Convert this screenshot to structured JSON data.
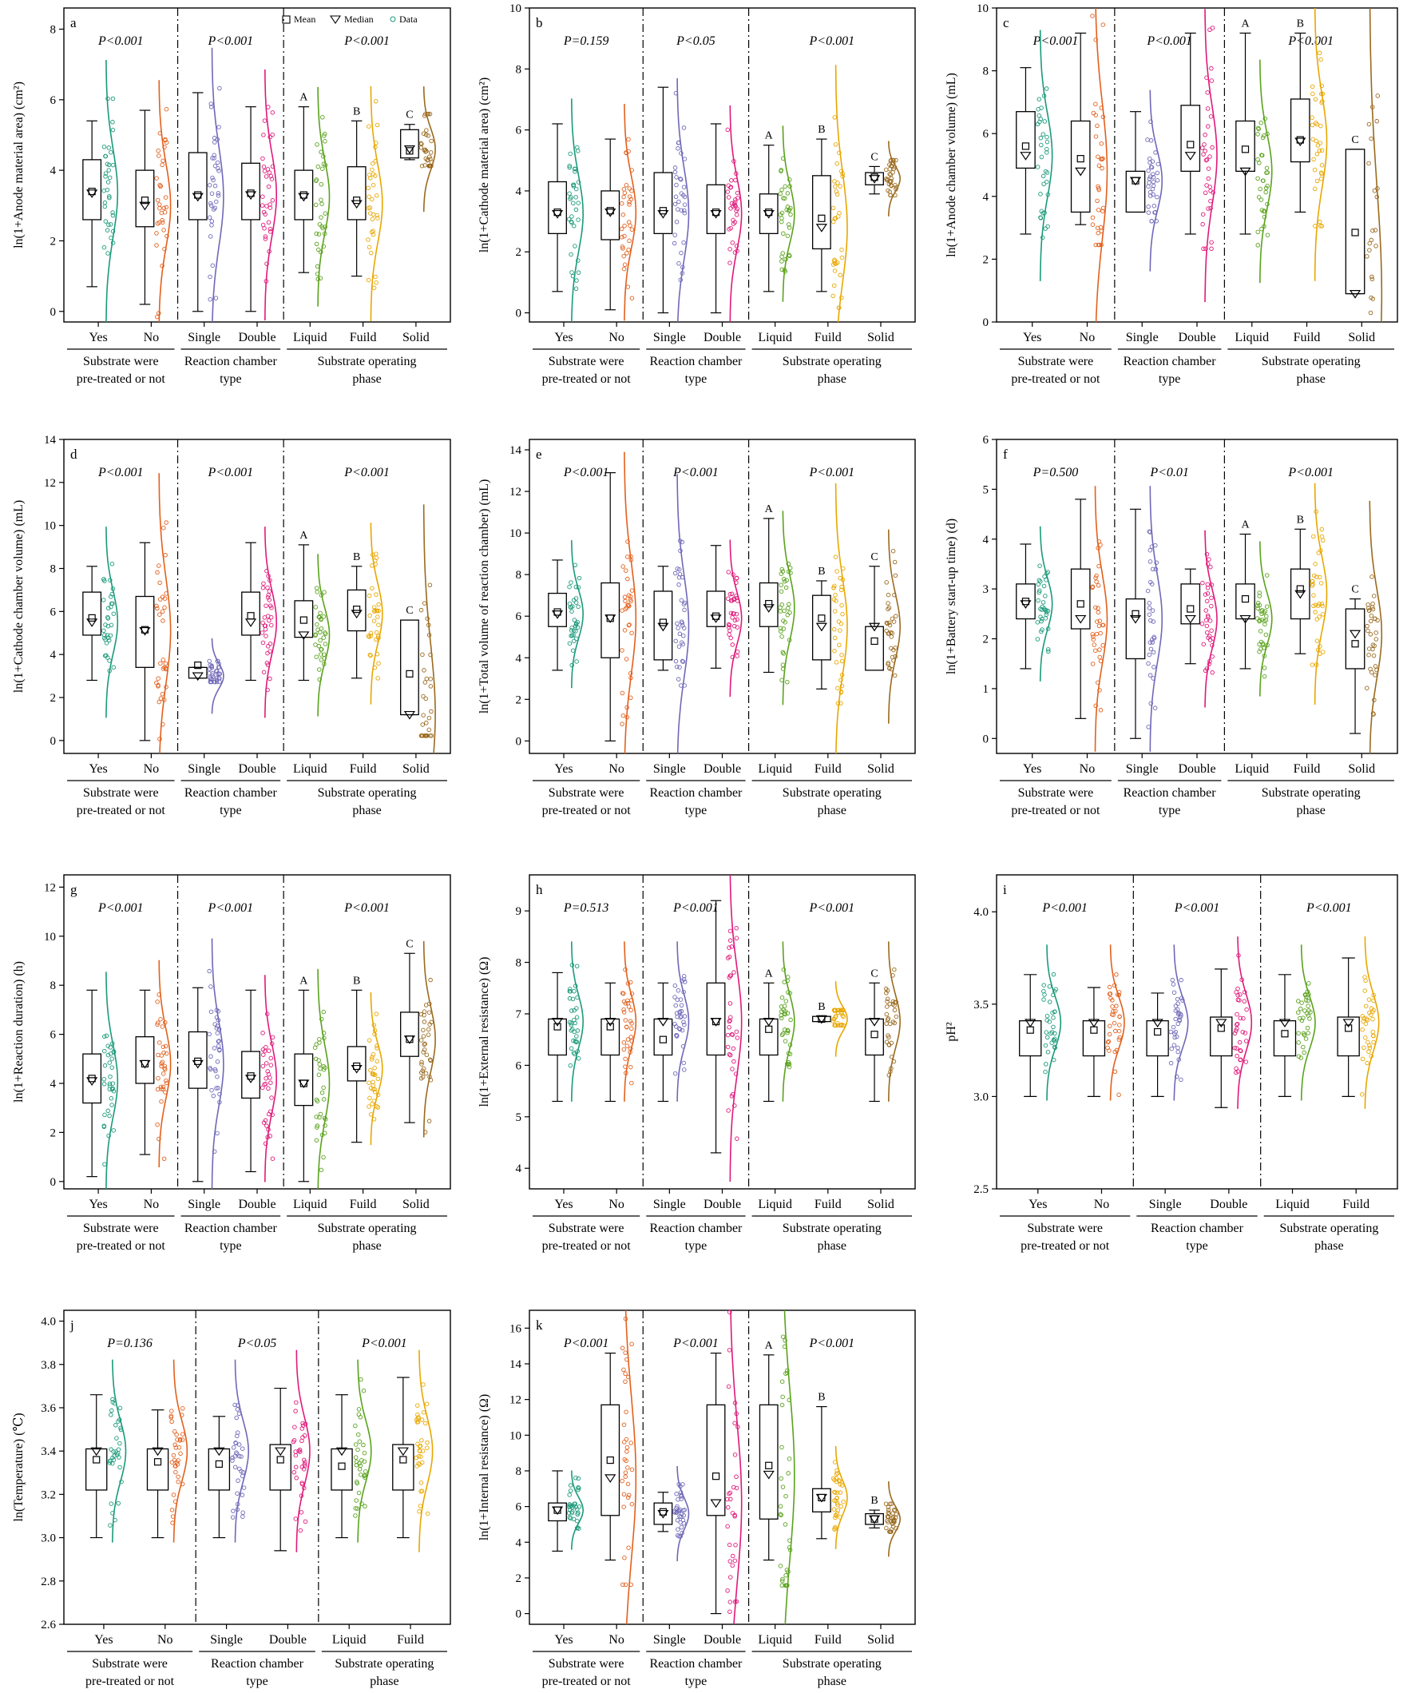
{
  "legend": {
    "mean_label": "Mean",
    "median_label": "Median",
    "data_label": "Data"
  },
  "colors": {
    "Yes": "#1a9a7a",
    "No": "#e2601c",
    "Single": "#6f68b8",
    "Double": "#e0197b",
    "Liquid": "#5aa21c",
    "Fuild": "#e8a700",
    "Solid": "#9a6a1e"
  },
  "group_titles": [
    [
      "Substrate were",
      "pre-treated or not"
    ],
    [
      "Reaction chamber",
      "type"
    ],
    [
      "Substrate operating",
      "phase"
    ]
  ],
  "chart_data": [
    {
      "id": "a",
      "type": "box",
      "ylabel": "ln(1+Anode material area) (cm²)",
      "ylim": [
        -0.3,
        8.6
      ],
      "yticks": [
        0,
        2,
        4,
        6,
        8
      ],
      "pvalues": [
        "P<0.001",
        "P<0.001",
        "P<0.001"
      ],
      "categories": [
        "Yes",
        "No",
        "Single",
        "Double",
        "Liquid",
        "Fuild",
        "Solid"
      ],
      "letters": [
        "",
        "",
        "",
        "",
        "A",
        "B",
        "C"
      ],
      "boxes": [
        {
          "q1": 2.6,
          "q3": 4.3,
          "median": 3.35,
          "mean": 3.4,
          "wlo": 0.7,
          "whi": 5.4
        },
        {
          "q1": 2.4,
          "q3": 4.0,
          "median": 3.0,
          "mean": 3.15,
          "wlo": 0.2,
          "whi": 5.7
        },
        {
          "q1": 2.6,
          "q3": 4.5,
          "median": 3.25,
          "mean": 3.3,
          "wlo": 0.0,
          "whi": 6.2
        },
        {
          "q1": 2.6,
          "q3": 4.2,
          "median": 3.3,
          "mean": 3.35,
          "wlo": 0.0,
          "whi": 5.8
        },
        {
          "q1": 2.6,
          "q3": 4.0,
          "median": 3.25,
          "mean": 3.3,
          "wlo": 1.1,
          "whi": 5.8
        },
        {
          "q1": 2.6,
          "q3": 4.1,
          "median": 3.05,
          "mean": 3.15,
          "wlo": 1.0,
          "whi": 5.4
        },
        {
          "q1": 4.35,
          "q3": 5.15,
          "median": 4.6,
          "mean": 4.55,
          "wlo": 4.3,
          "whi": 5.3
        }
      ]
    },
    {
      "id": "b",
      "type": "box",
      "ylabel": "ln(1+Cathode material area) (cm²)",
      "ylim": [
        -0.3,
        10
      ],
      "yticks": [
        0,
        2,
        4,
        6,
        8,
        10
      ],
      "pvalues": [
        "P=0.159",
        "P<0.05",
        "P<0.001"
      ],
      "categories": [
        "Yes",
        "No",
        "Single",
        "Double",
        "Liquid",
        "Fuild",
        "Solid"
      ],
      "letters": [
        "",
        "",
        "",
        "",
        "A",
        "B",
        "C"
      ],
      "boxes": [
        {
          "q1": 2.6,
          "q3": 4.3,
          "median": 3.25,
          "mean": 3.3,
          "wlo": 0.7,
          "whi": 6.2
        },
        {
          "q1": 2.4,
          "q3": 4.0,
          "median": 3.3,
          "mean": 3.35,
          "wlo": 0.1,
          "whi": 5.7
        },
        {
          "q1": 2.6,
          "q3": 4.6,
          "median": 3.25,
          "mean": 3.35,
          "wlo": 0.0,
          "whi": 7.4
        },
        {
          "q1": 2.6,
          "q3": 4.2,
          "median": 3.25,
          "mean": 3.3,
          "wlo": 0.0,
          "whi": 6.2
        },
        {
          "q1": 2.6,
          "q3": 3.9,
          "median": 3.25,
          "mean": 3.3,
          "wlo": 0.7,
          "whi": 5.5
        },
        {
          "q1": 2.1,
          "q3": 4.5,
          "median": 2.8,
          "mean": 3.1,
          "wlo": 0.7,
          "whi": 5.7
        },
        {
          "q1": 4.2,
          "q3": 4.6,
          "median": 4.4,
          "mean": 4.45,
          "wlo": 3.9,
          "whi": 4.8
        }
      ]
    },
    {
      "id": "c",
      "type": "box",
      "ylabel": "ln(1+Anode chamber volume) (mL)",
      "ylim": [
        0,
        10
      ],
      "yticks": [
        0,
        2,
        4,
        6,
        8,
        10
      ],
      "pvalues": [
        "P<0.001",
        "P<0.001",
        "P<0.001"
      ],
      "categories": [
        "Yes",
        "No",
        "Single",
        "Double",
        "Liquid",
        "Fuild",
        "Solid"
      ],
      "letters": [
        "",
        "",
        "",
        "",
        "A",
        "B",
        "C"
      ],
      "boxes": [
        {
          "q1": 4.9,
          "q3": 6.7,
          "median": 5.3,
          "mean": 5.6,
          "wlo": 2.8,
          "whi": 8.1
        },
        {
          "q1": 3.5,
          "q3": 6.4,
          "median": 4.8,
          "mean": 5.2,
          "wlo": 3.1,
          "whi": 9.2
        },
        {
          "q1": 3.5,
          "q3": 4.8,
          "median": 4.5,
          "mean": 4.5,
          "wlo": 3.5,
          "whi": 6.7
        },
        {
          "q1": 4.8,
          "q3": 6.9,
          "median": 5.3,
          "mean": 5.65,
          "wlo": 2.8,
          "whi": 9.2
        },
        {
          "q1": 4.8,
          "q3": 6.4,
          "median": 4.8,
          "mean": 5.5,
          "wlo": 2.8,
          "whi": 9.2
        },
        {
          "q1": 5.1,
          "q3": 7.1,
          "median": 5.75,
          "mean": 5.8,
          "wlo": 3.5,
          "whi": 9.2
        },
        {
          "q1": 0.9,
          "q3": 5.5,
          "median": 0.9,
          "mean": 2.85,
          "wlo": 0.9,
          "whi": 5.5
        }
      ]
    },
    {
      "id": "d",
      "type": "box",
      "ylabel": "ln(1+Cathode chamber volume) (mL)",
      "ylim": [
        -0.6,
        14
      ],
      "yticks": [
        0,
        2,
        4,
        6,
        8,
        10,
        12,
        14
      ],
      "pvalues": [
        "P<0.001",
        "P<0.001",
        "P<0.001"
      ],
      "categories": [
        "Yes",
        "No",
        "Single",
        "Double",
        "Liquid",
        "Fuild",
        "Solid"
      ],
      "letters": [
        "",
        "",
        "",
        "",
        "A",
        "B",
        "C"
      ],
      "boxes": [
        {
          "q1": 4.9,
          "q3": 6.9,
          "median": 5.5,
          "mean": 5.7,
          "wlo": 2.8,
          "whi": 8.1
        },
        {
          "q1": 3.4,
          "q3": 6.7,
          "median": 5.1,
          "mean": 5.15,
          "wlo": 0.0,
          "whi": 9.2
        },
        {
          "q1": 2.9,
          "q3": 3.4,
          "median": 3.0,
          "mean": 3.5,
          "wlo": 2.9,
          "whi": 3.4
        },
        {
          "q1": 4.9,
          "q3": 6.9,
          "median": 5.5,
          "mean": 5.8,
          "wlo": 2.8,
          "whi": 9.2
        },
        {
          "q1": 4.8,
          "q3": 6.5,
          "median": 4.9,
          "mean": 5.6,
          "wlo": 2.8,
          "whi": 9.1
        },
        {
          "q1": 5.1,
          "q3": 7.0,
          "median": 5.9,
          "mean": 6.1,
          "wlo": 2.9,
          "whi": 8.1
        },
        {
          "q1": 1.2,
          "q3": 5.6,
          "median": 1.2,
          "mean": 3.1,
          "wlo": 1.2,
          "whi": 5.6
        }
      ]
    },
    {
      "id": "e",
      "type": "box",
      "ylabel": "ln(1+Total volume of reaction chamber) (mL)",
      "ylim": [
        -0.6,
        14.5
      ],
      "yticks": [
        0,
        2,
        4,
        6,
        8,
        10,
        12,
        14
      ],
      "pvalues": [
        "P<0.001",
        "P<0.001",
        "P<0.001"
      ],
      "categories": [
        "Yes",
        "No",
        "Single",
        "Double",
        "Liquid",
        "Fuild",
        "Solid"
      ],
      "letters": [
        "",
        "",
        "",
        "",
        "A",
        "B",
        "C"
      ],
      "boxes": [
        {
          "q1": 5.5,
          "q3": 7.1,
          "median": 6.1,
          "mean": 6.2,
          "wlo": 3.4,
          "whi": 8.7
        },
        {
          "q1": 4.0,
          "q3": 7.6,
          "median": 5.9,
          "mean": 5.9,
          "wlo": 0.0,
          "whi": 12.9
        },
        {
          "q1": 3.9,
          "q3": 7.2,
          "median": 5.5,
          "mean": 5.7,
          "wlo": 3.4,
          "whi": 8.4
        },
        {
          "q1": 5.5,
          "q3": 7.2,
          "median": 5.9,
          "mean": 6.0,
          "wlo": 3.5,
          "whi": 9.4
        },
        {
          "q1": 5.5,
          "q3": 7.6,
          "median": 6.4,
          "mean": 6.6,
          "wlo": 3.3,
          "whi": 10.7
        },
        {
          "q1": 3.9,
          "q3": 7.0,
          "median": 5.5,
          "mean": 5.9,
          "wlo": 2.5,
          "whi": 7.7
        },
        {
          "q1": 3.4,
          "q3": 5.5,
          "median": 5.5,
          "mean": 4.8,
          "wlo": 3.4,
          "whi": 8.4
        }
      ]
    },
    {
      "id": "f",
      "type": "box",
      "ylabel": "ln(1+Battery start-up time) (d)",
      "ylim": [
        -0.3,
        6
      ],
      "yticks": [
        0,
        1,
        2,
        3,
        4,
        5,
        6
      ],
      "pvalues": [
        "P=0.500",
        "P<0.01",
        "P<0.001"
      ],
      "categories": [
        "Yes",
        "No",
        "Single",
        "Double",
        "Liquid",
        "Fuild",
        "Solid"
      ],
      "letters": [
        "",
        "",
        "",
        "",
        "A",
        "B",
        "C"
      ],
      "boxes": [
        {
          "q1": 2.4,
          "q3": 3.1,
          "median": 2.7,
          "mean": 2.75,
          "wlo": 1.4,
          "whi": 3.9
        },
        {
          "q1": 2.2,
          "q3": 3.4,
          "median": 2.4,
          "mean": 2.7,
          "wlo": 0.4,
          "whi": 4.8
        },
        {
          "q1": 1.6,
          "q3": 2.8,
          "median": 2.4,
          "mean": 2.5,
          "wlo": 0.0,
          "whi": 4.6
        },
        {
          "q1": 2.3,
          "q3": 3.1,
          "median": 2.4,
          "mean": 2.6,
          "wlo": 1.5,
          "whi": 3.4
        },
        {
          "q1": 2.4,
          "q3": 3.1,
          "median": 2.4,
          "mean": 2.8,
          "wlo": 1.4,
          "whi": 4.1
        },
        {
          "q1": 2.4,
          "q3": 3.4,
          "median": 2.9,
          "mean": 3.0,
          "wlo": 1.7,
          "whi": 4.2
        },
        {
          "q1": 1.4,
          "q3": 2.6,
          "median": 2.1,
          "mean": 1.9,
          "wlo": 0.1,
          "whi": 2.8
        }
      ]
    },
    {
      "id": "g",
      "type": "box",
      "ylabel": "ln(1+Reaction duration) (h)",
      "ylim": [
        -0.3,
        12.5
      ],
      "yticks": [
        0,
        2,
        4,
        6,
        8,
        10,
        12
      ],
      "pvalues": [
        "P<0.001",
        "P<0.001",
        "P<0.001"
      ],
      "categories": [
        "Yes",
        "No",
        "Single",
        "Double",
        "Liquid",
        "Fuild",
        "Solid"
      ],
      "letters": [
        "",
        "",
        "",
        "",
        "A",
        "B",
        "C"
      ],
      "boxes": [
        {
          "q1": 3.2,
          "q3": 5.2,
          "median": 4.1,
          "mean": 4.2,
          "wlo": 0.2,
          "whi": 7.8
        },
        {
          "q1": 4.0,
          "q3": 5.9,
          "median": 4.8,
          "mean": 4.8,
          "wlo": 1.1,
          "whi": 7.8
        },
        {
          "q1": 3.8,
          "q3": 6.1,
          "median": 4.8,
          "mean": 4.9,
          "wlo": 0.0,
          "whi": 7.9
        },
        {
          "q1": 3.4,
          "q3": 5.3,
          "median": 4.2,
          "mean": 4.3,
          "wlo": 0.4,
          "whi": 7.8
        },
        {
          "q1": 3.1,
          "q3": 5.2,
          "median": 4.0,
          "mean": 4.0,
          "wlo": 0.0,
          "whi": 7.8
        },
        {
          "q1": 4.1,
          "q3": 5.5,
          "median": 4.6,
          "mean": 4.7,
          "wlo": 1.6,
          "whi": 7.8
        },
        {
          "q1": 5.1,
          "q3": 6.9,
          "median": 5.8,
          "mean": 5.8,
          "wlo": 2.4,
          "whi": 9.3
        }
      ]
    },
    {
      "id": "h",
      "type": "box",
      "ylabel": "ln(1+External resistance) (Ω)",
      "ylim": [
        3.6,
        9.7
      ],
      "yticks": [
        4,
        5,
        6,
        7,
        8,
        9
      ],
      "pvalues": [
        "P=0.513",
        "P<0.001",
        "P<0.001"
      ],
      "categories": [
        "Yes",
        "No",
        "Single",
        "Double",
        "Liquid",
        "Fuild",
        "Solid"
      ],
      "letters": [
        "",
        "",
        "",
        "",
        "A",
        "B",
        "C"
      ],
      "boxes": [
        {
          "q1": 6.2,
          "q3": 6.9,
          "median": 6.85,
          "mean": 6.75,
          "wlo": 5.3,
          "whi": 7.8
        },
        {
          "q1": 6.2,
          "q3": 6.9,
          "median": 6.85,
          "mean": 6.75,
          "wlo": 5.3,
          "whi": 7.6
        },
        {
          "q1": 6.2,
          "q3": 6.9,
          "median": 6.85,
          "mean": 6.5,
          "wlo": 5.3,
          "whi": 7.6
        },
        {
          "q1": 6.2,
          "q3": 7.6,
          "median": 6.85,
          "mean": 6.85,
          "wlo": 4.3,
          "whi": 9.2
        },
        {
          "q1": 6.2,
          "q3": 6.9,
          "median": 6.85,
          "mean": 6.7,
          "wlo": 5.3,
          "whi": 7.6
        },
        {
          "q1": 6.85,
          "q3": 6.95,
          "median": 6.9,
          "mean": 6.9,
          "wlo": 6.85,
          "whi": 6.95
        },
        {
          "q1": 6.2,
          "q3": 6.9,
          "median": 6.85,
          "mean": 6.6,
          "wlo": 5.3,
          "whi": 7.6
        }
      ]
    },
    {
      "id": "i",
      "type": "box",
      "ylabel": "pH²",
      "ylim": [
        2.5,
        4.2
      ],
      "yticks": [
        2.5,
        3.0,
        3.5,
        4.0
      ],
      "pvalues": [
        "P<0.001",
        "P<0.001",
        "P<0.001"
      ],
      "categories": [
        "Yes",
        "No",
        "Single",
        "Double",
        "Liquid",
        "Fuild"
      ],
      "letters": [
        "",
        "",
        "",
        "",
        "",
        ""
      ],
      "boxes": [
        {
          "q1": 3.22,
          "q3": 3.41,
          "median": 3.4,
          "mean": 3.36,
          "wlo": 3.0,
          "whi": 3.66
        },
        {
          "q1": 3.22,
          "q3": 3.41,
          "median": 3.4,
          "mean": 3.36,
          "wlo": 3.0,
          "whi": 3.59
        },
        {
          "q1": 3.22,
          "q3": 3.41,
          "median": 3.4,
          "mean": 3.35,
          "wlo": 3.0,
          "whi": 3.56
        },
        {
          "q1": 3.22,
          "q3": 3.43,
          "median": 3.4,
          "mean": 3.37,
          "wlo": 2.94,
          "whi": 3.69
        },
        {
          "q1": 3.22,
          "q3": 3.41,
          "median": 3.4,
          "mean": 3.34,
          "wlo": 3.0,
          "whi": 3.66
        },
        {
          "q1": 3.22,
          "q3": 3.43,
          "median": 3.4,
          "mean": 3.37,
          "wlo": 3.0,
          "whi": 3.75
        }
      ]
    },
    {
      "id": "j",
      "type": "box",
      "ylabel": "ln(Temperature) (℃)",
      "ylim": [
        2.6,
        4.05
      ],
      "yticks": [
        2.6,
        2.8,
        3.0,
        3.2,
        3.4,
        3.6,
        3.8,
        4.0
      ],
      "pvalues": [
        "P=0.136",
        "P<0.05",
        "P<0.001"
      ],
      "categories": [
        "Yes",
        "No",
        "Single",
        "Double",
        "Liquid",
        "Fuild"
      ],
      "letters": [
        "",
        "",
        "",
        "",
        "",
        ""
      ],
      "boxes": [
        {
          "q1": 3.22,
          "q3": 3.41,
          "median": 3.4,
          "mean": 3.36,
          "wlo": 3.0,
          "whi": 3.66
        },
        {
          "q1": 3.22,
          "q3": 3.41,
          "median": 3.4,
          "mean": 3.35,
          "wlo": 3.0,
          "whi": 3.59
        },
        {
          "q1": 3.22,
          "q3": 3.41,
          "median": 3.4,
          "mean": 3.34,
          "wlo": 3.0,
          "whi": 3.56
        },
        {
          "q1": 3.22,
          "q3": 3.43,
          "median": 3.4,
          "mean": 3.36,
          "wlo": 2.94,
          "whi": 3.69
        },
        {
          "q1": 3.22,
          "q3": 3.41,
          "median": 3.4,
          "mean": 3.33,
          "wlo": 3.0,
          "whi": 3.66
        },
        {
          "q1": 3.22,
          "q3": 3.43,
          "median": 3.4,
          "mean": 3.36,
          "wlo": 3.0,
          "whi": 3.74
        }
      ]
    },
    {
      "id": "k",
      "type": "box",
      "ylabel": "ln(1+Internal resistance) (Ω)",
      "ylim": [
        -0.6,
        17
      ],
      "yticks": [
        0,
        2,
        4,
        6,
        8,
        10,
        12,
        14,
        16
      ],
      "pvalues": [
        "P<0.001",
        "P<0.001",
        "P<0.001"
      ],
      "categories": [
        "Yes",
        "No",
        "Single",
        "Double",
        "Liquid",
        "Fuild",
        "Solid"
      ],
      "letters": [
        "",
        "",
        "",
        "",
        "A",
        "B",
        "B"
      ],
      "boxes": [
        {
          "q1": 5.2,
          "q3": 6.2,
          "median": 5.8,
          "mean": 5.8,
          "wlo": 3.5,
          "whi": 8.0
        },
        {
          "q1": 5.5,
          "q3": 11.7,
          "median": 7.6,
          "mean": 8.6,
          "wlo": 3.0,
          "whi": 14.6
        },
        {
          "q1": 5.0,
          "q3": 6.2,
          "median": 5.6,
          "mean": 5.7,
          "wlo": 4.6,
          "whi": 6.8
        },
        {
          "q1": 5.5,
          "q3": 11.7,
          "median": 6.2,
          "mean": 7.7,
          "wlo": 0.0,
          "whi": 14.6
        },
        {
          "q1": 5.3,
          "q3": 11.7,
          "median": 7.8,
          "mean": 8.3,
          "wlo": 3.0,
          "whi": 14.5
        },
        {
          "q1": 5.7,
          "q3": 7.0,
          "median": 6.5,
          "mean": 6.5,
          "wlo": 4.2,
          "whi": 11.6
        },
        {
          "q1": 5.0,
          "q3": 5.6,
          "median": 5.3,
          "mean": 5.3,
          "wlo": 4.8,
          "whi": 5.8
        }
      ]
    }
  ]
}
